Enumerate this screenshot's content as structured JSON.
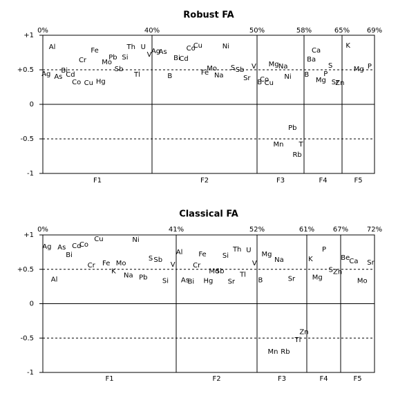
{
  "chart_data": [
    {
      "type": "factor-loadings",
      "title": "Robust FA",
      "ylim": [
        -1,
        1
      ],
      "yticks": [
        {
          "value": 1,
          "label": "+1"
        },
        {
          "value": 0.5,
          "label": "+0.5"
        },
        0,
        -0.5,
        -1
      ],
      "variance_labels": [
        "0%",
        "40%",
        "50%",
        "58%",
        "65%",
        "69%"
      ],
      "factors": [
        {
          "name": "F1",
          "elements": [
            "Ag",
            "Al",
            "As",
            "Bi",
            "Cd",
            "Co",
            "Cr",
            "Cu",
            "Fe",
            "Hg",
            "Mo",
            "Pb",
            "Sb",
            "Si",
            "Th",
            "Tl",
            "U",
            "V"
          ],
          "loadings": [
            0.44,
            0.83,
            0.4,
            0.49,
            0.43,
            0.32,
            0.64,
            0.31,
            0.78,
            0.33,
            0.61,
            0.68,
            0.51,
            0.68,
            0.83,
            0.43,
            0.83,
            0.72
          ]
        },
        {
          "name": "F2",
          "elements": [
            "Ag",
            "As",
            "B",
            "Bi",
            "Cd",
            "Co",
            "Cu",
            "Fe",
            "Mo",
            "Na",
            "Ni",
            "S",
            "Sb",
            "Sr",
            "V"
          ],
          "loadings": [
            0.77,
            0.76,
            0.41,
            0.67,
            0.66,
            0.81,
            0.85,
            0.46,
            0.52,
            0.42,
            0.84,
            0.53,
            0.5,
            0.38,
            0.55
          ]
        },
        {
          "name": "F3",
          "elements": [
            "B",
            "Co",
            "Cu",
            "Mg",
            "Mn",
            "Na",
            "Ni",
            "Pb",
            "Rb",
            "Tl"
          ],
          "loadings": [
            0.32,
            0.36,
            0.31,
            0.58,
            -0.58,
            0.55,
            0.4,
            -0.34,
            -0.73,
            -0.58
          ]
        },
        {
          "name": "F4",
          "elements": [
            "B",
            "Ba",
            "Ca",
            "Mg",
            "P",
            "S",
            "Sr",
            "Zn"
          ],
          "loadings": [
            0.43,
            0.65,
            0.78,
            0.35,
            0.44,
            0.56,
            0.32,
            0.31
          ]
        },
        {
          "name": "F5",
          "elements": [
            "K",
            "Mg",
            "P"
          ],
          "loadings": [
            0.85,
            0.51,
            0.55
          ]
        }
      ]
    },
    {
      "type": "factor-loadings",
      "title": "Classical FA",
      "ylim": [
        -1,
        1
      ],
      "yticks": [
        {
          "value": 1,
          "label": "+1"
        },
        {
          "value": 0.5,
          "label": "+0.5"
        },
        0,
        -0.5,
        -1
      ],
      "variance_labels": [
        "0%",
        "41%",
        "52%",
        "61%",
        "67%",
        "72%"
      ],
      "factors": [
        {
          "name": "F1",
          "elements": [
            "Ag",
            "Al",
            "As",
            "Bi",
            "Cd",
            "Co",
            "Cr",
            "Cu",
            "Fe",
            "K",
            "Mo",
            "Na",
            "Ni",
            "Pb",
            "S",
            "Sb",
            "Si",
            "V"
          ],
          "loadings": [
            0.83,
            0.35,
            0.82,
            0.71,
            0.84,
            0.86,
            0.56,
            0.94,
            0.59,
            0.47,
            0.59,
            0.41,
            0.93,
            0.38,
            0.66,
            0.64,
            0.33,
            0.57
          ]
        },
        {
          "name": "F2",
          "elements": [
            "Al",
            "As",
            "Bi",
            "Cr",
            "Fe",
            "Hg",
            "Mo",
            "Sb",
            "Si",
            "Sr",
            "Th",
            "Tl",
            "U",
            "V"
          ],
          "loadings": [
            0.75,
            0.34,
            0.32,
            0.56,
            0.72,
            0.33,
            0.47,
            0.47,
            0.7,
            0.32,
            0.79,
            0.42,
            0.78,
            0.59
          ]
        },
        {
          "name": "F3",
          "elements": [
            "B",
            "Mg",
            "Mn",
            "Na",
            "Rb",
            "Sr",
            "Tl",
            "Zn"
          ],
          "loadings": [
            0.34,
            0.72,
            -0.7,
            0.64,
            -0.7,
            0.36,
            -0.53,
            -0.41
          ]
        },
        {
          "name": "F4",
          "elements": [
            "K",
            "Mg",
            "P",
            "S",
            "Zn"
          ],
          "loadings": [
            0.65,
            0.38,
            0.79,
            0.49,
            0.46
          ]
        },
        {
          "name": "F5",
          "elements": [
            "Be",
            "Ca",
            "Mo",
            "Sr"
          ],
          "loadings": [
            0.67,
            0.62,
            0.33,
            0.6
          ]
        }
      ]
    }
  ]
}
